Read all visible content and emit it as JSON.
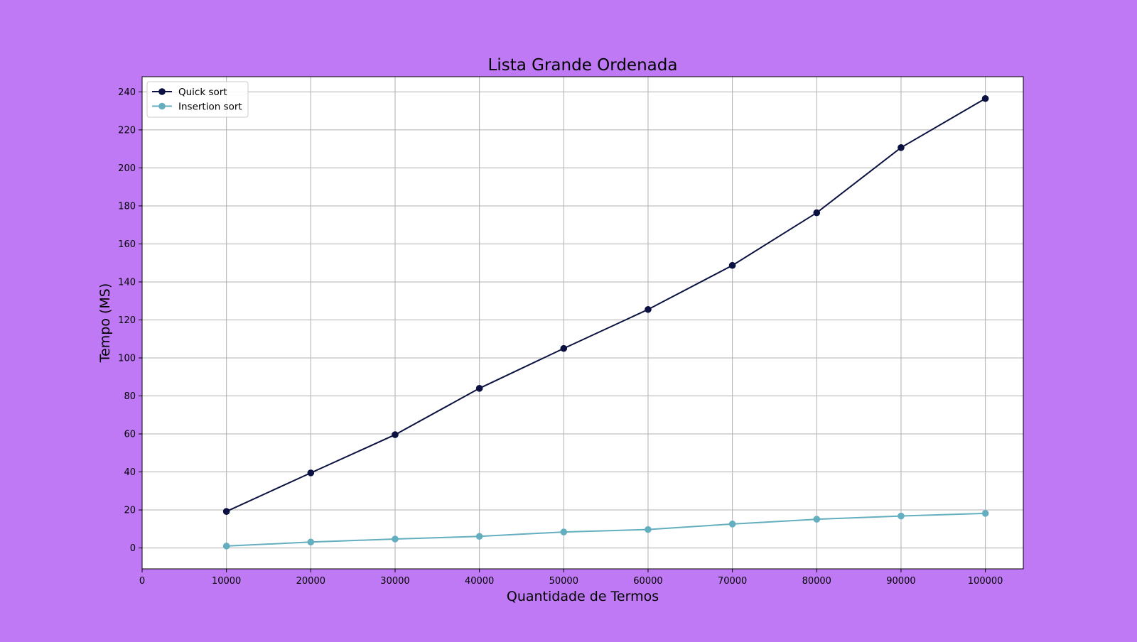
{
  "colors": {
    "page_background": "#bf79f4",
    "plot_background": "#ffffff",
    "grid": "#b0b0b0"
  },
  "chart_data": {
    "type": "line",
    "title": "Lista Grande Ordenada",
    "xlabel": "Quantidade de Termos",
    "ylabel": "Tempo (MS)",
    "xlim": [
      0,
      104500
    ],
    "ylim": [
      -11,
      248
    ],
    "xticks": [
      0,
      10000,
      20000,
      30000,
      40000,
      50000,
      60000,
      70000,
      80000,
      90000,
      100000
    ],
    "yticks": [
      0,
      20,
      40,
      60,
      80,
      100,
      120,
      140,
      160,
      180,
      200,
      220,
      240
    ],
    "grid": true,
    "legend_position": "top-left",
    "x": [
      10000,
      20000,
      30000,
      40000,
      50000,
      60000,
      70000,
      80000,
      90000,
      100000
    ],
    "series": [
      {
        "name": "Quick sort",
        "color": "#0b1140",
        "values": [
          19.2,
          39.5,
          59.6,
          84.0,
          105.0,
          125.5,
          148.7,
          176.4,
          210.7,
          236.5
        ]
      },
      {
        "name": "Insertion sort",
        "color": "#63aebf",
        "values": [
          1.0,
          3.1,
          4.7,
          6.1,
          8.4,
          9.7,
          12.6,
          15.1,
          16.8,
          18.2
        ]
      }
    ]
  }
}
